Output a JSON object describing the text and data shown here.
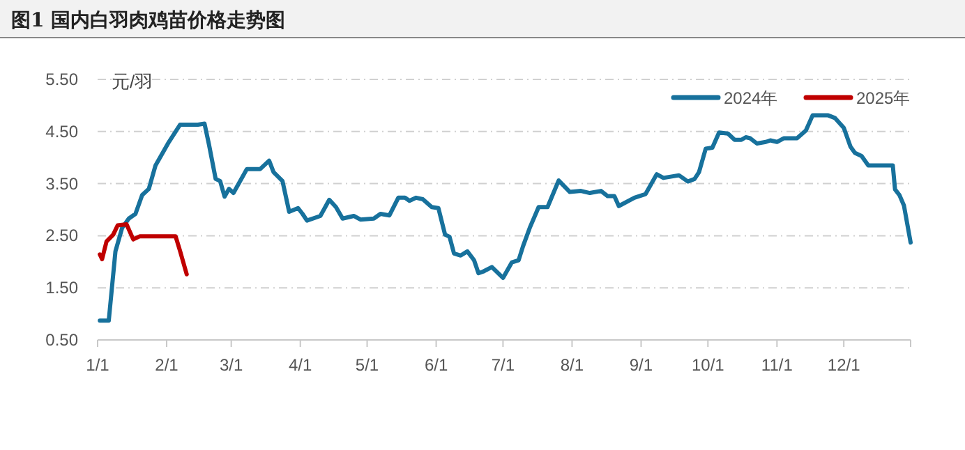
{
  "chart_data": {
    "type": "line",
    "title": "图1  国内白羽肉鸡苗价格走势图",
    "ylabel": "元/羽",
    "xlim": [
      "--01-01",
      "--12-31"
    ],
    "xticks": [
      {
        "value": "--01-01",
        "label": "1/1"
      },
      {
        "value": "--02-01",
        "label": "2/1"
      },
      {
        "value": "--03-01",
        "label": "3/1"
      },
      {
        "value": "--04-01",
        "label": "4/1"
      },
      {
        "value": "--05-01",
        "label": "5/1"
      },
      {
        "value": "--06-01",
        "label": "6/1"
      },
      {
        "value": "--07-01",
        "label": "7/1"
      },
      {
        "value": "--08-01",
        "label": "8/1"
      },
      {
        "value": "--09-01",
        "label": "9/1"
      },
      {
        "value": "--10-01",
        "label": "10/1"
      },
      {
        "value": "--11-01",
        "label": "11/1"
      },
      {
        "value": "--12-01",
        "label": "12/1"
      }
    ],
    "ylim": [
      0.5,
      5.5
    ],
    "yticks": [
      {
        "value": 0.5,
        "label": "0.50"
      },
      {
        "value": 1.5,
        "label": "1.50"
      },
      {
        "value": 2.5,
        "label": "2.50"
      },
      {
        "value": 3.5,
        "label": "3.50"
      },
      {
        "value": 4.5,
        "label": "4.50"
      },
      {
        "value": 5.5,
        "label": "5.50"
      }
    ],
    "grid": "y",
    "legend": "top right",
    "series": [
      {
        "name": "2024年",
        "color": "#17719c",
        "x": [
          "--01-02",
          "--01-06",
          "--01-09",
          "--01-12",
          "--01-15",
          "--01-18",
          "--01-21",
          "--01-24",
          "--01-27",
          "--02-02",
          "--02-07",
          "--02-15",
          "--02-18",
          "--02-20",
          "--02-23",
          "--02-25",
          "--02-27",
          "--02-29",
          "--03-02",
          "--03-08",
          "--03-14",
          "--03-18",
          "--03-20",
          "--03-24",
          "--03-27",
          "--03-31",
          "--04-02",
          "--04-04",
          "--04-10",
          "--04-14",
          "--04-17",
          "--04-20",
          "--04-25",
          "--04-28",
          "--05-04",
          "--05-07",
          "--05-11",
          "--05-15",
          "--05-18",
          "--05-20",
          "--05-23",
          "--05-26",
          "--05-30",
          "--06-02",
          "--06-05",
          "--06-07",
          "--06-09",
          "--06-12",
          "--06-15",
          "--06-18",
          "--06-20",
          "--06-22",
          "--06-26",
          "--07-01",
          "--07-05",
          "--07-08",
          "--07-10",
          "--07-13",
          "--07-17",
          "--07-21",
          "--07-26",
          "--07-31",
          "--08-05",
          "--08-09",
          "--08-14",
          "--08-17",
          "--08-20",
          "--08-22",
          "--08-29",
          "--09-03",
          "--09-08",
          "--09-11",
          "--09-18",
          "--09-22",
          "--09-25",
          "--09-27",
          "--09-30",
          "--10-03",
          "--10-06",
          "--10-10",
          "--10-13",
          "--10-16",
          "--10-18",
          "--10-20",
          "--10-23",
          "--10-27",
          "--10-29",
          "--11-01",
          "--11-04",
          "--11-10",
          "--11-14",
          "--11-17",
          "--11-24",
          "--11-27",
          "--12-01",
          "--12-04",
          "--12-06",
          "--12-09",
          "--12-12",
          "--12-23",
          "--12-24",
          "--12-26",
          "--12-28",
          "--12-31"
        ],
        "values": [
          0.87,
          0.87,
          2.2,
          2.65,
          2.83,
          2.92,
          3.28,
          3.4,
          3.85,
          4.3,
          4.63,
          4.63,
          4.65,
          4.25,
          3.59,
          3.55,
          3.25,
          3.4,
          3.32,
          3.78,
          3.78,
          3.94,
          3.72,
          3.55,
          2.96,
          3.03,
          2.92,
          2.79,
          2.88,
          3.19,
          3.05,
          2.83,
          2.88,
          2.81,
          2.83,
          2.92,
          2.89,
          3.23,
          3.23,
          3.17,
          3.23,
          3.2,
          3.05,
          3.03,
          2.52,
          2.48,
          2.16,
          2.12,
          2.2,
          2.03,
          1.78,
          1.81,
          1.9,
          1.69,
          1.99,
          2.03,
          2.3,
          2.65,
          3.05,
          3.05,
          3.56,
          3.34,
          3.36,
          3.32,
          3.36,
          3.26,
          3.26,
          3.07,
          3.23,
          3.3,
          3.68,
          3.61,
          3.66,
          3.54,
          3.59,
          3.72,
          4.17,
          4.19,
          4.48,
          4.46,
          4.34,
          4.34,
          4.39,
          4.37,
          4.27,
          4.3,
          4.33,
          4.3,
          4.37,
          4.37,
          4.52,
          4.81,
          4.81,
          4.76,
          4.57,
          4.21,
          4.09,
          4.03,
          3.85,
          3.85,
          3.39,
          3.28,
          3.08,
          2.37
        ]
      },
      {
        "name": "2025年",
        "color": "#c00000",
        "x": [
          "--01-02",
          "--01-03",
          "--01-05",
          "--01-08",
          "--01-10",
          "--01-14",
          "--01-17",
          "--01-20",
          "--02-05",
          "--02-07",
          "--02-10"
        ],
        "values": [
          2.14,
          2.05,
          2.39,
          2.52,
          2.7,
          2.72,
          2.43,
          2.49,
          2.49,
          2.21,
          1.76
        ]
      }
    ]
  }
}
